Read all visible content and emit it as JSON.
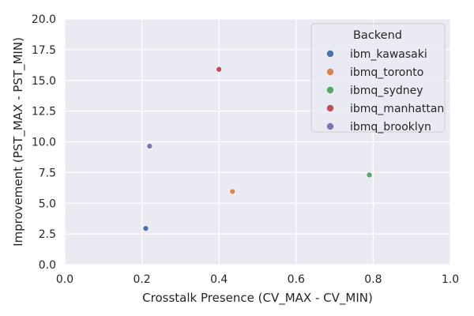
{
  "chart_data": {
    "type": "scatter",
    "title": "",
    "xlabel": "Crosstalk Presence (CV_MAX - CV_MIN)",
    "ylabel": "Improvement (PST_MAX - PST_MIN)",
    "xlim": [
      0.0,
      1.0
    ],
    "ylim": [
      0.0,
      20.0
    ],
    "x_ticks": [
      "0.0",
      "0.2",
      "0.4",
      "0.6",
      "0.8",
      "1.0"
    ],
    "y_ticks": [
      "0.0",
      "2.5",
      "5.0",
      "7.5",
      "10.0",
      "12.5",
      "15.0",
      "17.5",
      "20.0"
    ],
    "grid": true,
    "background_color": "#eaeaf2",
    "grid_color": "#ffffff",
    "legend": {
      "title": "Backend",
      "placement": "top-right"
    },
    "series": [
      {
        "name": "ibm_kawasaki",
        "color": "#4c72b0",
        "x": [
          0.21
        ],
        "y": [
          2.95
        ]
      },
      {
        "name": "ibmq_toronto",
        "color": "#dd8452",
        "x": [
          0.435
        ],
        "y": [
          5.95
        ]
      },
      {
        "name": "ibmq_sydney",
        "color": "#55a868",
        "x": [
          0.79
        ],
        "y": [
          7.3
        ]
      },
      {
        "name": "ibmq_manhattan",
        "color": "#c44e52",
        "x": [
          0.4
        ],
        "y": [
          15.9
        ]
      },
      {
        "name": "ibmq_brooklyn",
        "color": "#8172b3",
        "x": [
          0.22
        ],
        "y": [
          9.65
        ]
      }
    ]
  }
}
